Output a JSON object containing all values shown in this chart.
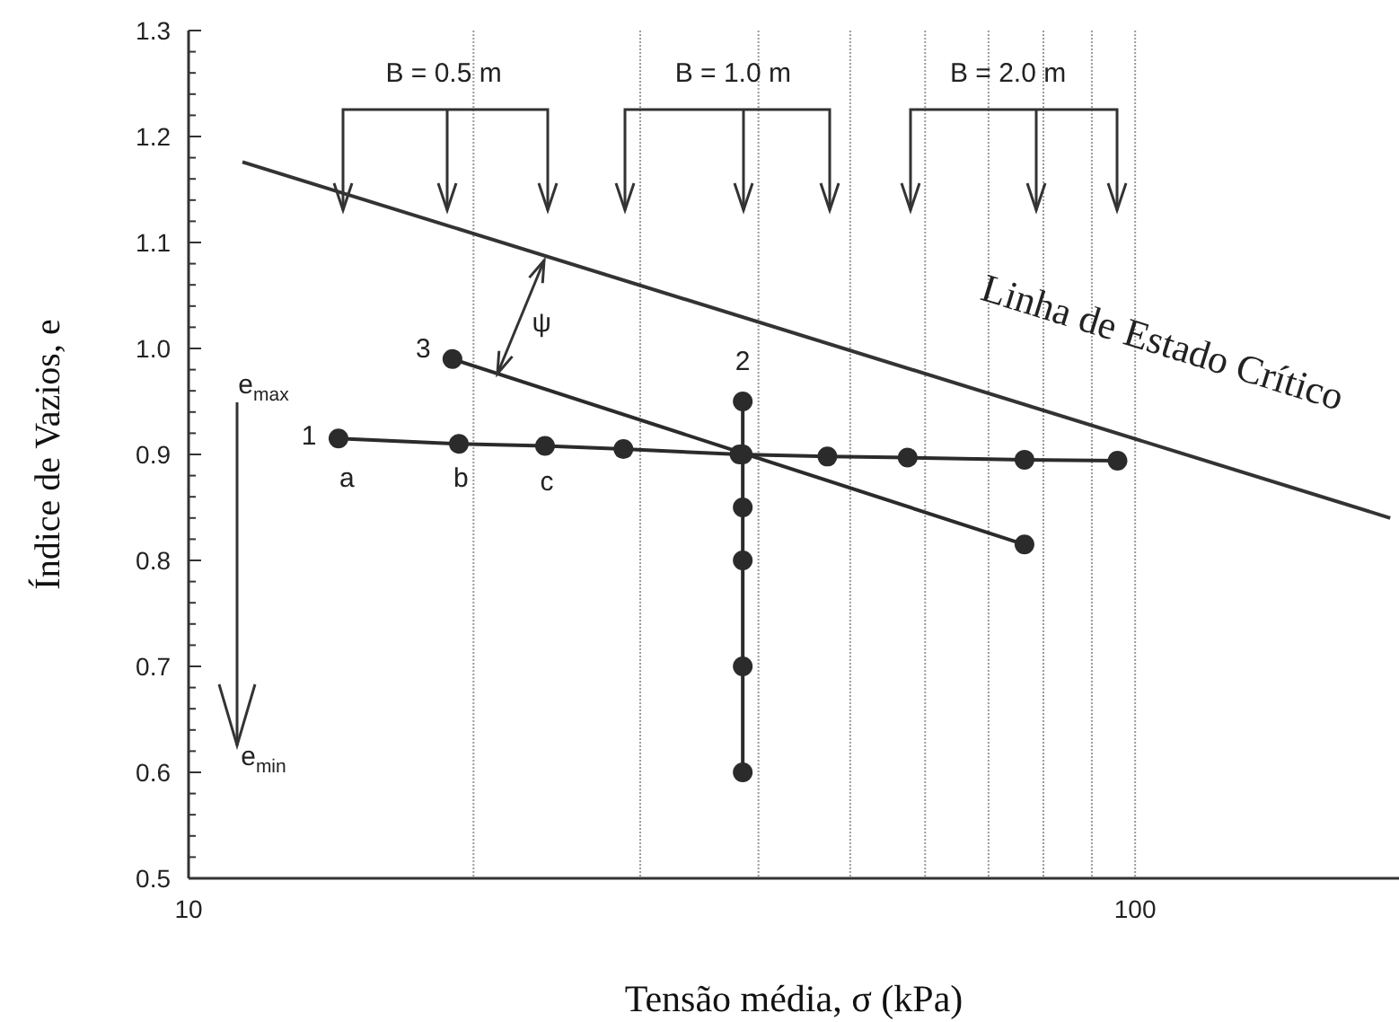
{
  "chart_data": {
    "type": "line",
    "xlabel": "Tensão média, σ (kPa)",
    "ylabel": "Índice de Vazios, e",
    "log": "x",
    "grid": "x",
    "marker": "circle",
    "xlim": [
      10,
      190
    ],
    "xticks": [
      10,
      {
        "value": 20,
        "label": null
      },
      {
        "value": 30,
        "label": null
      },
      {
        "value": 40,
        "label": null
      },
      {
        "value": 50,
        "label": null
      },
      {
        "value": 60,
        "label": null
      },
      {
        "value": 70,
        "label": null
      },
      {
        "value": 80,
        "label": null
      },
      {
        "value": 90,
        "label": null
      },
      100
    ],
    "ylim": [
      0.5,
      1.3
    ],
    "yticks": [
      0.5,
      {
        "value": 0.52,
        "label": null
      },
      {
        "value": 0.54,
        "label": null
      },
      {
        "value": 0.56,
        "label": null
      },
      {
        "value": 0.58,
        "label": null
      },
      0.6,
      {
        "value": 0.62,
        "label": null
      },
      {
        "value": 0.64,
        "label": null
      },
      {
        "value": 0.66,
        "label": null
      },
      {
        "value": 0.68,
        "label": null
      },
      0.7,
      {
        "value": 0.72,
        "label": null
      },
      {
        "value": 0.74,
        "label": null
      },
      {
        "value": 0.76,
        "label": null
      },
      {
        "value": 0.78,
        "label": null
      },
      0.8,
      {
        "value": 0.82,
        "label": null
      },
      {
        "value": 0.84,
        "label": null
      },
      {
        "value": 0.86,
        "label": null
      },
      {
        "value": 0.88,
        "label": null
      },
      0.9,
      {
        "value": 0.92,
        "label": null
      },
      {
        "value": 0.94,
        "label": null
      },
      {
        "value": 0.96,
        "label": null
      },
      {
        "value": 0.98,
        "label": null
      },
      {
        "value": 1,
        "label": "1.0"
      },
      {
        "value": 1.02,
        "label": null
      },
      {
        "value": 1.04,
        "label": null
      },
      {
        "value": 1.06,
        "label": null
      },
      {
        "value": 1.08,
        "label": null
      },
      1.1,
      {
        "value": 1.12,
        "label": null
      },
      {
        "value": 1.14,
        "label": null
      },
      {
        "value": 1.16,
        "label": null
      },
      {
        "value": 1.18,
        "label": null
      },
      1.2,
      {
        "value": 1.22,
        "label": null
      },
      {
        "value": 1.24,
        "label": null
      },
      {
        "value": 1.26,
        "label": null
      },
      {
        "value": 1.28,
        "label": null
      },
      1.3
    ],
    "series": [
      {
        "x": [
          14.4,
          19.3,
          23.8,
          28.8,
          38.2,
          47.3,
          57.5,
          76.4,
          95.8
        ],
        "values": [
          0.915,
          0.91,
          0.908,
          0.905,
          0.9,
          0.898,
          0.897,
          0.895,
          0.894
        ],
        "color": "#2b2b2b"
      },
      {
        "x": [
          38.5,
          38.5,
          38.5,
          38.5,
          38.5,
          38.5
        ],
        "values": [
          0.95,
          0.9,
          0.85,
          0.8,
          0.7,
          0.6
        ],
        "color": "#2b2b2b"
      },
      {
        "x": [
          19,
          76.4
        ],
        "values": [
          0.99,
          0.815
        ],
        "color": "#2b2b2b"
      },
      {
        "x": [
          11.4,
          186
        ],
        "values": [
          1.176,
          0.84
        ],
        "color": "#333333",
        "marker": "none"
      }
    ],
    "annotations": [
      "B = 0.5 m",
      "B = 1.0 m",
      "B = 2.0 m",
      "ψ",
      "1",
      "a",
      "b",
      "c",
      "2",
      "3",
      "e$_{max}$",
      "e$_{min}$",
      "Linha de Estado Crítico"
    ]
  }
}
